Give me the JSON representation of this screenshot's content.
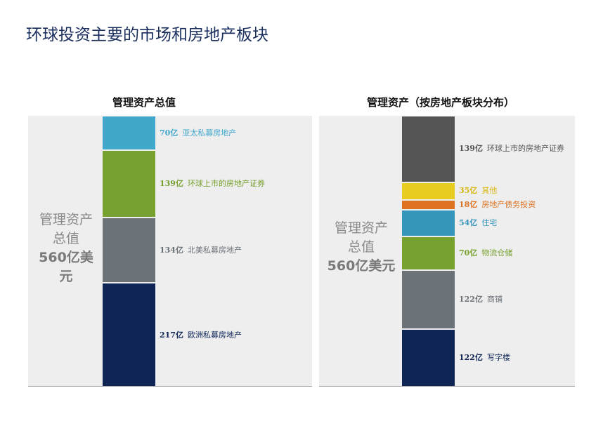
{
  "page": {
    "title": "环球投资主要的市场和房地产板块"
  },
  "chart_data": [
    {
      "type": "stacked-bar",
      "title": "管理资产总值",
      "total_label": [
        "管理资产",
        "总值"
      ],
      "total_value": "560亿美",
      "total_value_tail": "元",
      "unit": "亿",
      "segments": [
        {
          "value": 70,
          "label": "70亿",
          "name": "亚太私募房地产",
          "color": "#41a8cc",
          "text_color": "#41a8cc"
        },
        {
          "value": 139,
          "label": "139亿",
          "name": "环球上市的房地产证券",
          "color": "#77a22f",
          "text_color": "#77a22f"
        },
        {
          "value": 134,
          "label": "134亿",
          "name": "北美私募房地产",
          "color": "#6b7379",
          "text_color": "#6b7379"
        },
        {
          "value": 217,
          "label": "217亿",
          "name": "欧洲私募房地产",
          "color": "#0e2556",
          "text_color": "#0e2556"
        }
      ]
    },
    {
      "type": "stacked-bar",
      "title": "管理资产（按房地产板块分布）",
      "total_label": [
        "管理资产",
        "总值"
      ],
      "total_value": "560亿美元",
      "unit": "亿",
      "segments": [
        {
          "value": 139,
          "label": "139亿",
          "name": "环球上市的房地产证券",
          "color": "#555555",
          "text_color": "#555555"
        },
        {
          "value": 35,
          "label": "35亿",
          "name": "其他",
          "color": "#e8cc1f",
          "text_color": "#d8b80c"
        },
        {
          "value": 18,
          "label": "18亿",
          "name": "房地产债务投资",
          "color": "#dd7222",
          "text_color": "#dd7222"
        },
        {
          "value": 54,
          "label": "54亿",
          "name": "住宅",
          "color": "#3595bb",
          "text_color": "#3595bb"
        },
        {
          "value": 70,
          "label": "70亿",
          "name": "物流仓储",
          "color": "#77a22f",
          "text_color": "#77a22f"
        },
        {
          "value": 122,
          "label": "122亿",
          "name": "商铺",
          "color": "#6b7379",
          "text_color": "#6b7379"
        },
        {
          "value": 122,
          "label": "122亿",
          "name": "写字楼",
          "color": "#0e2556",
          "text_color": "#0e2556"
        }
      ]
    }
  ]
}
